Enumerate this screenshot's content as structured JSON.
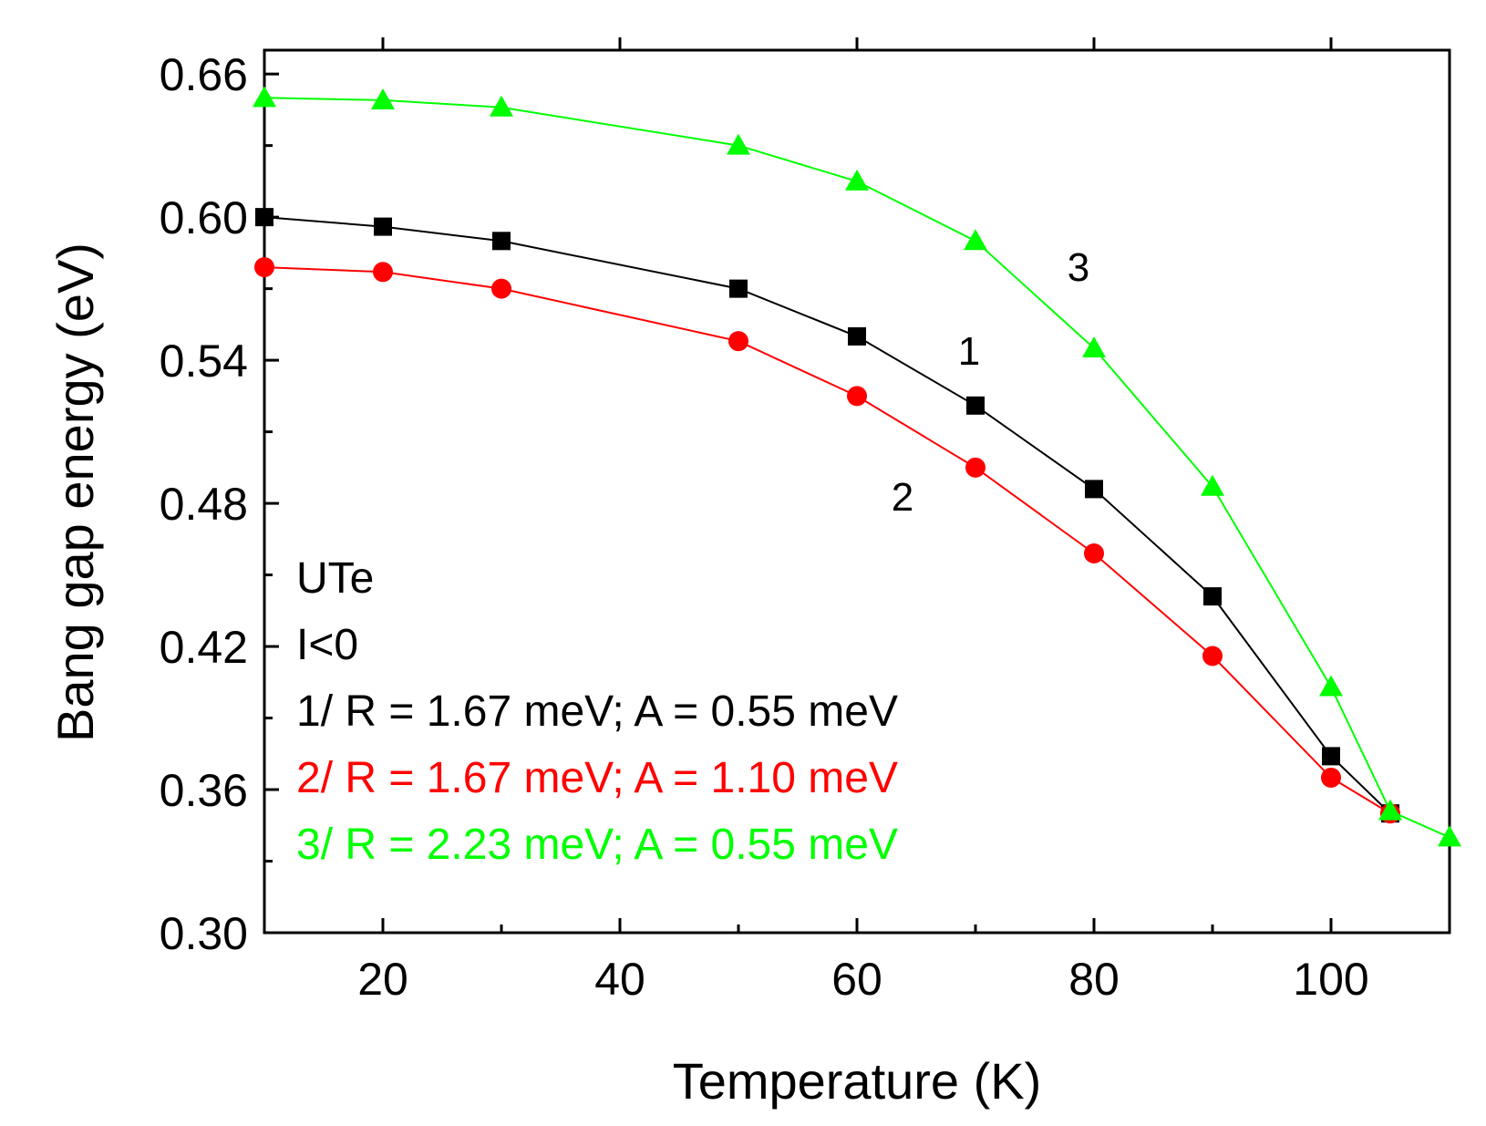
{
  "chart_data": {
    "type": "line",
    "title": "",
    "xlabel": "Temperature (K)",
    "ylabel": "Bang gap energy (eV)",
    "xlim": [
      10,
      110
    ],
    "ylim": [
      0.3,
      0.67
    ],
    "x_ticks": [
      20,
      40,
      60,
      80,
      100
    ],
    "x_tick_labels": [
      "20",
      "40",
      "60",
      "80",
      "100"
    ],
    "y_ticks": [
      0.3,
      0.36,
      0.42,
      0.48,
      0.54,
      0.6,
      0.66
    ],
    "y_tick_labels": [
      "0.30",
      "0.36",
      "0.42",
      "0.48",
      "0.54",
      "0.60",
      "0.66"
    ],
    "grid": false,
    "series": [
      {
        "name": "1",
        "label": "1/ R = 1.67 meV; A = 0.55 meV",
        "color": "#000000",
        "marker": "square",
        "x": [
          10,
          20,
          30,
          50,
          60,
          70,
          80,
          90,
          100,
          105
        ],
        "values": [
          0.6,
          0.596,
          0.59,
          0.57,
          0.55,
          0.521,
          0.486,
          0.441,
          0.374,
          0.35
        ]
      },
      {
        "name": "2",
        "label": "2/ R = 1.67 meV; A = 1.10 meV",
        "color": "#ff0000",
        "marker": "circle",
        "x": [
          10,
          20,
          30,
          50,
          60,
          70,
          80,
          90,
          100,
          105
        ],
        "values": [
          0.579,
          0.577,
          0.57,
          0.548,
          0.525,
          0.495,
          0.459,
          0.416,
          0.365,
          0.35
        ]
      },
      {
        "name": "3",
        "label": "3/ R = 2.23 meV; A = 0.55 meV",
        "color": "#00ff00",
        "marker": "triangle",
        "x": [
          10,
          20,
          30,
          50,
          60,
          70,
          80,
          90,
          100,
          105,
          110
        ],
        "values": [
          0.65,
          0.649,
          0.646,
          0.63,
          0.615,
          0.59,
          0.545,
          0.487,
          0.403,
          0.351,
          0.34
        ]
      }
    ],
    "annotations": {
      "material": "UTe",
      "condition": "I<0",
      "curve_labels": [
        "1",
        "2",
        "3"
      ]
    }
  }
}
